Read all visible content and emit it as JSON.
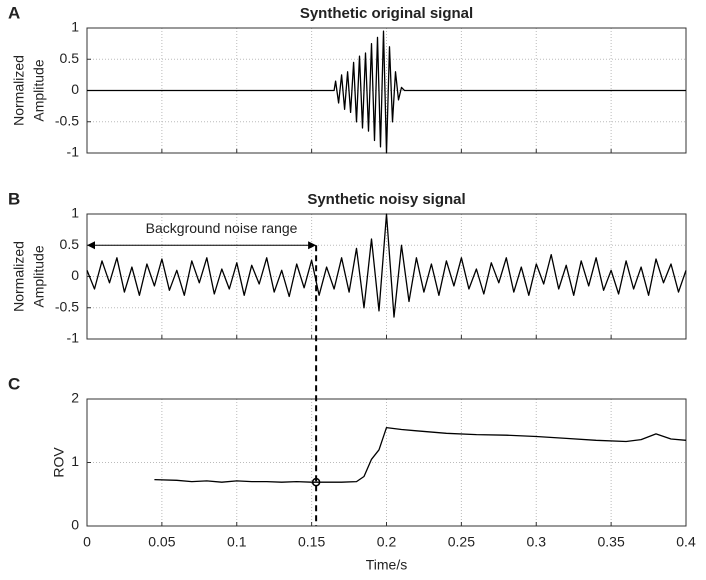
{
  "chart_data": [
    {
      "type": "line",
      "panel_label": "A",
      "title": "Synthetic original signal",
      "ylabel": [
        "Normalized",
        "Amplitude"
      ],
      "xlim": [
        0,
        0.4
      ],
      "ylim": [
        -1,
        1
      ],
      "yticks": [
        -1,
        -0.5,
        0,
        0.5,
        1
      ],
      "xticks": [
        0,
        0.05,
        0.1,
        0.15,
        0.2,
        0.25,
        0.3,
        0.35,
        0.4
      ],
      "xtick_labels": false,
      "grid": true,
      "color": "#000000",
      "x": [
        0,
        0.165,
        0.166,
        0.168,
        0.17,
        0.172,
        0.174,
        0.176,
        0.178,
        0.18,
        0.182,
        0.184,
        0.186,
        0.188,
        0.19,
        0.192,
        0.194,
        0.196,
        0.198,
        0.2,
        0.202,
        0.204,
        0.206,
        0.208,
        0.21,
        0.212,
        0.4
      ],
      "values": [
        0,
        0,
        0.15,
        -0.2,
        0.25,
        -0.3,
        0.3,
        -0.35,
        0.45,
        -0.5,
        0.55,
        -0.6,
        0.6,
        -0.65,
        0.75,
        -0.8,
        0.85,
        -0.9,
        0.95,
        -1,
        0.7,
        -0.5,
        0.3,
        -0.15,
        0.05,
        0,
        0
      ]
    },
    {
      "type": "line",
      "panel_label": "B",
      "title": "Synthetic noisy signal",
      "ylabel": [
        "Normalized",
        "Amplitude"
      ],
      "xlim": [
        0,
        0.4
      ],
      "ylim": [
        -1,
        1
      ],
      "yticks": [
        -1,
        -0.5,
        0,
        0.5,
        1
      ],
      "xticks": [
        0,
        0.05,
        0.1,
        0.15,
        0.2,
        0.25,
        0.3,
        0.35,
        0.4
      ],
      "xtick_labels": false,
      "grid": true,
      "color": "#000000",
      "annotation": {
        "text": "Background noise range",
        "x_start": 0,
        "x_end": 0.153,
        "y": 0.5
      },
      "x": [
        0,
        0.005,
        0.01,
        0.015,
        0.02,
        0.025,
        0.03,
        0.035,
        0.04,
        0.045,
        0.05,
        0.055,
        0.06,
        0.065,
        0.07,
        0.075,
        0.08,
        0.085,
        0.09,
        0.095,
        0.1,
        0.105,
        0.11,
        0.115,
        0.12,
        0.125,
        0.13,
        0.135,
        0.14,
        0.145,
        0.15,
        0.155,
        0.16,
        0.165,
        0.17,
        0.175,
        0.18,
        0.185,
        0.19,
        0.195,
        0.2,
        0.205,
        0.21,
        0.215,
        0.22,
        0.225,
        0.23,
        0.235,
        0.24,
        0.245,
        0.25,
        0.255,
        0.26,
        0.265,
        0.27,
        0.275,
        0.28,
        0.285,
        0.29,
        0.295,
        0.3,
        0.305,
        0.31,
        0.315,
        0.32,
        0.325,
        0.33,
        0.335,
        0.34,
        0.345,
        0.35,
        0.355,
        0.36,
        0.365,
        0.37,
        0.375,
        0.38,
        0.385,
        0.39,
        0.395,
        0.4
      ],
      "values": [
        0.1,
        -0.2,
        0.25,
        -0.1,
        0.3,
        -0.25,
        0.15,
        -0.3,
        0.2,
        -0.15,
        0.28,
        -0.22,
        0.1,
        -0.3,
        0.25,
        -0.1,
        0.3,
        -0.28,
        0.12,
        -0.2,
        0.22,
        -0.3,
        0.18,
        -0.12,
        0.3,
        -0.25,
        0.1,
        -0.32,
        0.2,
        -0.18,
        0.26,
        -0.3,
        0.15,
        -0.2,
        0.3,
        -0.25,
        0.45,
        -0.5,
        0.6,
        -0.55,
        1.0,
        -0.65,
        0.5,
        -0.4,
        0.3,
        -0.25,
        0.2,
        -0.3,
        0.25,
        -0.15,
        0.3,
        -0.2,
        0.12,
        -0.28,
        0.22,
        -0.1,
        0.3,
        -0.25,
        0.15,
        -0.3,
        0.2,
        -0.12,
        0.35,
        -0.2,
        0.18,
        -0.3,
        0.25,
        -0.15,
        0.3,
        -0.22,
        0.1,
        -0.28,
        0.25,
        -0.2,
        0.15,
        -0.3,
        0.28,
        -0.1,
        0.2,
        -0.25,
        0.1
      ]
    },
    {
      "type": "line",
      "panel_label": "C",
      "ylabel": [
        "ROV"
      ],
      "xlabel": "Time/s",
      "xlim": [
        0,
        0.4
      ],
      "ylim": [
        0,
        2
      ],
      "yticks": [
        0,
        1,
        2
      ],
      "xticks": [
        0,
        0.05,
        0.1,
        0.15,
        0.2,
        0.25,
        0.3,
        0.35,
        0.4
      ],
      "xtick_labels": true,
      "grid": true,
      "color": "#000000",
      "marker": {
        "x": 0.153,
        "y": 0.69
      },
      "x": [
        0.045,
        0.06,
        0.07,
        0.08,
        0.09,
        0.1,
        0.11,
        0.12,
        0.13,
        0.14,
        0.15,
        0.16,
        0.17,
        0.18,
        0.185,
        0.19,
        0.195,
        0.2,
        0.21,
        0.22,
        0.24,
        0.26,
        0.28,
        0.3,
        0.32,
        0.34,
        0.36,
        0.37,
        0.38,
        0.39,
        0.4
      ],
      "values": [
        0.73,
        0.72,
        0.7,
        0.71,
        0.69,
        0.71,
        0.7,
        0.7,
        0.69,
        0.7,
        0.69,
        0.69,
        0.69,
        0.7,
        0.78,
        1.05,
        1.2,
        1.55,
        1.52,
        1.5,
        1.46,
        1.44,
        1.43,
        1.41,
        1.38,
        1.35,
        1.33,
        1.36,
        1.45,
        1.37,
        1.35
      ]
    }
  ]
}
